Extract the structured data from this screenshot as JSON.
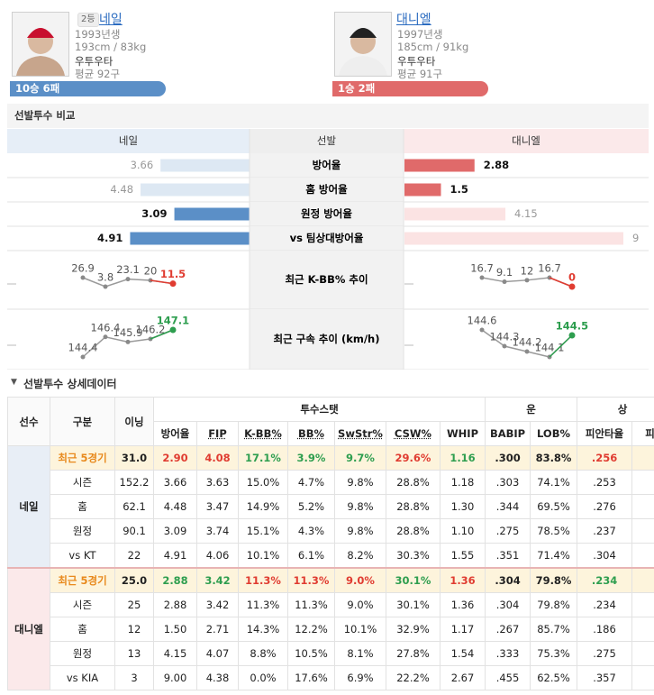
{
  "header": {
    "pitchers": [
      {
        "rank": "2등",
        "name": "네일",
        "birth": "1993년생",
        "body": "193cm / 83kg",
        "hand": "우투우타",
        "pitches": "평균 92구",
        "record": "10승 6패",
        "color": "#5b8fc7"
      },
      {
        "name": "대니엘",
        "birth": "1997년생",
        "body": "185cm / 91kg",
        "hand": "우투우타",
        "pitches": "평균 91구",
        "record": "1승 2패",
        "color": "#e06a6a"
      }
    ]
  },
  "comparison": {
    "title": "선발투수 비교",
    "columns": [
      "네일",
      "선발",
      "대니엘"
    ],
    "rows": [
      {
        "label": "방어율",
        "left": 3.66,
        "right": 2.88,
        "left_color": "#dde8f3",
        "right_color": "#e06a6a",
        "left_bold": false,
        "right_bold": true
      },
      {
        "label": "홈 방어율",
        "left": 4.48,
        "right": 1.5,
        "left_color": "#dde8f3",
        "right_color": "#e06a6a",
        "left_bold": false,
        "right_bold": true
      },
      {
        "label": "원정 방어율",
        "left": 3.09,
        "right": 4.15,
        "left_color": "#5b8fc7",
        "right_color": "#fbe3e3",
        "left_bold": true,
        "right_bold": false
      },
      {
        "label": "vs 팀상대방어율",
        "left": 4.91,
        "right": 9,
        "left_color": "#5b8fc7",
        "right_color": "#fbe3e3",
        "left_bold": true,
        "right_bold": false
      }
    ],
    "trends": [
      {
        "label": "최근 K-BB% 추이",
        "left": [
          26.9,
          3.8,
          23.1,
          20,
          11.5
        ],
        "right": [
          16.7,
          9.1,
          12,
          16.7,
          0
        ],
        "left_last_color": "#e03c31",
        "right_last_color": "#e03c31"
      },
      {
        "label": "최근 구속 추이 (km/h)",
        "left": [
          144.4,
          146.4,
          145.9,
          146.2,
          147.1
        ],
        "right": [
          144.6,
          144.3,
          144.2,
          144.1,
          144.5
        ],
        "left_last_color": "#2e9e4f",
        "right_last_color": "#2e9e4f"
      }
    ]
  },
  "detail": {
    "title": "선발투수 상세데이터",
    "header": [
      "선수",
      "구분",
      "이닝"
    ],
    "groups": [
      {
        "label": "투수스탯",
        "columns": [
          "방어율",
          "FIP",
          "K-BB%",
          "BB%",
          "SwStr%",
          "CSW%",
          "WHIP"
        ]
      },
      {
        "label": "운",
        "columns": [
          "BABIP",
          "LOB%"
        ]
      },
      {
        "label": "상",
        "columns": [
          "피안타율",
          "피"
        ]
      }
    ],
    "players": [
      {
        "name": "네일",
        "background": "#e8eef6",
        "rows": [
          {
            "split": "최근 5경기",
            "split_color": "#e8891c",
            "cells": [
              "31.0",
              "2.90",
              "4.08",
              "17.1%",
              "3.9%",
              "9.7%",
              "29.6%",
              "1.16",
              ".300",
              "83.8%",
              ".256"
            ],
            "colors": [
              "#222",
              "#e03c31",
              "#e03c31",
              "#2e9e4f",
              "#2e9e4f",
              "#2e9e4f",
              "#e03c31",
              "#2e9e4f",
              "#222",
              "#222",
              "#e03c31"
            ]
          },
          {
            "split": "시즌",
            "cells": [
              "152.2",
              "3.66",
              "3.63",
              "15.0%",
              "4.7%",
              "9.8%",
              "28.8%",
              "1.18",
              ".303",
              "74.1%",
              ".253"
            ]
          },
          {
            "split": "홈",
            "cells": [
              "62.1",
              "4.48",
              "3.47",
              "14.9%",
              "5.2%",
              "9.8%",
              "28.8%",
              "1.30",
              ".344",
              "69.5%",
              ".276"
            ]
          },
          {
            "split": "원정",
            "cells": [
              "90.1",
              "3.09",
              "3.74",
              "15.1%",
              "4.3%",
              "9.8%",
              "28.8%",
              "1.10",
              ".275",
              "78.5%",
              ".237"
            ]
          },
          {
            "split": "vs KT",
            "cells": [
              "22",
              "4.91",
              "4.06",
              "10.1%",
              "6.1%",
              "8.2%",
              "30.3%",
              "1.55",
              ".351",
              "71.4%",
              ".304"
            ]
          }
        ]
      },
      {
        "name": "대니엘",
        "background": "#fbe9ea",
        "rows": [
          {
            "split": "최근 5경기",
            "split_color": "#e8891c",
            "cells": [
              "25.0",
              "2.88",
              "3.42",
              "11.3%",
              "11.3%",
              "9.0%",
              "30.1%",
              "1.36",
              ".304",
              "79.8%",
              ".234"
            ],
            "colors": [
              "#222",
              "#2e9e4f",
              "#2e9e4f",
              "#e03c31",
              "#e03c31",
              "#e03c31",
              "#2e9e4f",
              "#e03c31",
              "#222",
              "#222",
              "#2e9e4f"
            ]
          },
          {
            "split": "시즌",
            "cells": [
              "25",
              "2.88",
              "3.42",
              "11.3%",
              "11.3%",
              "9.0%",
              "30.1%",
              "1.36",
              ".304",
              "79.8%",
              ".234"
            ]
          },
          {
            "split": "홈",
            "cells": [
              "12",
              "1.50",
              "2.71",
              "14.3%",
              "12.2%",
              "10.1%",
              "32.9%",
              "1.17",
              ".267",
              "85.7%",
              ".186"
            ]
          },
          {
            "split": "원정",
            "cells": [
              "13",
              "4.15",
              "4.07",
              "8.8%",
              "10.5%",
              "8.1%",
              "27.8%",
              "1.54",
              ".333",
              "75.3%",
              ".275"
            ]
          },
          {
            "split": "vs KIA",
            "cells": [
              "3",
              "9.00",
              "4.38",
              "0.0%",
              "17.6%",
              "6.9%",
              "22.2%",
              "2.67",
              ".455",
              "62.5%",
              ".357"
            ]
          }
        ]
      }
    ]
  }
}
